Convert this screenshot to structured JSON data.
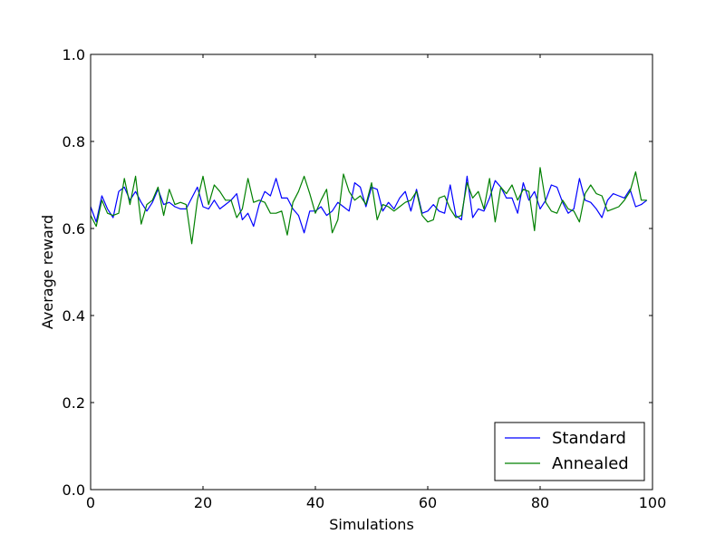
{
  "chart_data": {
    "type": "line",
    "title": "",
    "xlabel": "Simulations",
    "ylabel": "Average reward",
    "xlim": [
      0,
      100
    ],
    "ylim": [
      0.0,
      1.0
    ],
    "x_ticks": [
      "0",
      "20",
      "40",
      "60",
      "80",
      "100"
    ],
    "y_ticks": [
      "0.0",
      "0.2",
      "0.4",
      "0.6",
      "0.8",
      "1.0"
    ],
    "grid": false,
    "legend_position": "lower-right",
    "x": [
      0,
      1,
      2,
      3,
      4,
      5,
      6,
      7,
      8,
      9,
      10,
      11,
      12,
      13,
      14,
      15,
      16,
      17,
      18,
      19,
      20,
      21,
      22,
      23,
      24,
      25,
      26,
      27,
      28,
      29,
      30,
      31,
      32,
      33,
      34,
      35,
      36,
      37,
      38,
      39,
      40,
      41,
      42,
      43,
      44,
      45,
      46,
      47,
      48,
      49,
      50,
      51,
      52,
      53,
      54,
      55,
      56,
      57,
      58,
      59,
      60,
      61,
      62,
      63,
      64,
      65,
      66,
      67,
      68,
      69,
      70,
      71,
      72,
      73,
      74,
      75,
      76,
      77,
      78,
      79,
      80,
      81,
      82,
      83,
      84,
      85,
      86,
      87,
      88,
      89,
      90,
      91,
      92,
      93,
      94,
      95,
      96,
      97,
      98,
      99
    ],
    "series": [
      {
        "name": "Standard",
        "color": "#0000ff",
        "values": [
          0.65,
          0.615,
          0.675,
          0.645,
          0.625,
          0.685,
          0.695,
          0.665,
          0.685,
          0.66,
          0.64,
          0.66,
          0.69,
          0.655,
          0.66,
          0.65,
          0.645,
          0.645,
          0.67,
          0.695,
          0.65,
          0.645,
          0.665,
          0.645,
          0.655,
          0.665,
          0.68,
          0.62,
          0.635,
          0.605,
          0.655,
          0.685,
          0.675,
          0.715,
          0.67,
          0.67,
          0.645,
          0.63,
          0.59,
          0.64,
          0.64,
          0.65,
          0.63,
          0.64,
          0.66,
          0.65,
          0.64,
          0.705,
          0.695,
          0.65,
          0.695,
          0.69,
          0.64,
          0.66,
          0.645,
          0.67,
          0.685,
          0.64,
          0.69,
          0.635,
          0.64,
          0.655,
          0.64,
          0.635,
          0.7,
          0.63,
          0.62,
          0.72,
          0.625,
          0.645,
          0.64,
          0.67,
          0.71,
          0.695,
          0.67,
          0.67,
          0.635,
          0.705,
          0.665,
          0.685,
          0.645,
          0.665,
          0.7,
          0.695,
          0.66,
          0.635,
          0.645,
          0.715,
          0.665,
          0.66,
          0.645,
          0.625,
          0.665,
          0.68,
          0.675,
          0.67,
          0.69,
          0.65,
          0.655,
          0.665
        ]
      },
      {
        "name": "Annealed",
        "color": "#008000",
        "values": [
          0.63,
          0.605,
          0.665,
          0.635,
          0.63,
          0.635,
          0.715,
          0.655,
          0.72,
          0.61,
          0.655,
          0.665,
          0.695,
          0.63,
          0.69,
          0.655,
          0.66,
          0.655,
          0.565,
          0.665,
          0.72,
          0.655,
          0.7,
          0.685,
          0.665,
          0.665,
          0.625,
          0.645,
          0.715,
          0.66,
          0.665,
          0.66,
          0.635,
          0.635,
          0.64,
          0.585,
          0.66,
          0.685,
          0.72,
          0.68,
          0.635,
          0.665,
          0.69,
          0.59,
          0.62,
          0.725,
          0.685,
          0.665,
          0.675,
          0.655,
          0.705,
          0.62,
          0.655,
          0.65,
          0.64,
          0.65,
          0.66,
          0.665,
          0.685,
          0.63,
          0.615,
          0.62,
          0.67,
          0.675,
          0.645,
          0.625,
          0.63,
          0.705,
          0.67,
          0.685,
          0.645,
          0.715,
          0.615,
          0.695,
          0.68,
          0.7,
          0.665,
          0.69,
          0.685,
          0.595,
          0.74,
          0.66,
          0.64,
          0.635,
          0.665,
          0.645,
          0.64,
          0.615,
          0.68,
          0.7,
          0.68,
          0.675,
          0.64,
          0.645,
          0.65,
          0.665,
          0.685,
          0.73,
          0.665,
          0.665
        ]
      }
    ]
  }
}
